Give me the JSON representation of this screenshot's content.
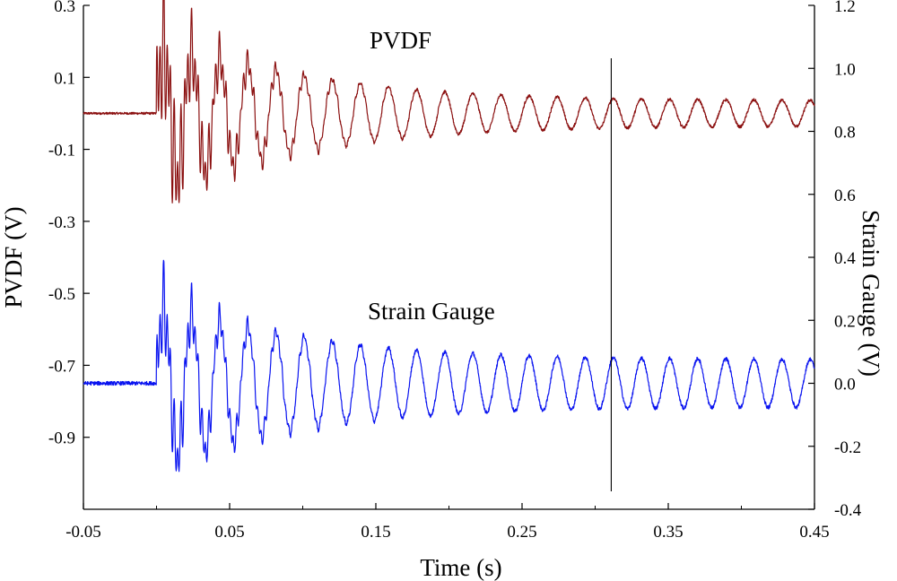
{
  "chart_data": {
    "type": "line",
    "title": "",
    "xlabel": "Time (s)",
    "ylabel_left": "PVDF (V)",
    "ylabel_right": "Strain Gauge (V)",
    "xlim": [
      -0.05,
      0.45
    ],
    "ylim_left": [
      -1.1,
      0.3
    ],
    "ylim_right": [
      -0.4,
      1.2
    ],
    "x_ticks": [
      -0.05,
      0.05,
      0.15,
      0.25,
      0.35,
      0.45
    ],
    "x_tick_labels": [
      "-0.05",
      "0.05",
      "0.15",
      "0.25",
      "0.35",
      "0.45"
    ],
    "y_left_ticks": [
      0.3,
      0.1,
      -0.1,
      -0.3,
      -0.5,
      -0.7,
      -0.9
    ],
    "y_left_tick_labels": [
      "0.3",
      "0.1",
      "-0.1",
      "-0.3",
      "-0.5",
      "-0.7",
      "-0.9"
    ],
    "y_right_ticks": [
      1.2,
      1.0,
      0.8,
      0.6,
      0.4,
      0.2,
      0.0,
      -0.2,
      -0.4
    ],
    "y_right_tick_labels": [
      "1.2",
      "1.0",
      "0.8",
      "0.6",
      "0.4",
      "0.2",
      "0.0",
      "-0.2",
      "-0.4"
    ],
    "grid": false,
    "vertical_marker_x": 0.311,
    "series": [
      {
        "name": "PVDF",
        "axis": "left",
        "color": "#8b1010",
        "baseline": 0.0,
        "impact_time": 0.0,
        "initial_peak": 0.29,
        "initial_trough": -0.3,
        "late_amplitude": 0.035,
        "dominant_frequency_hz": 52,
        "label": "PVDF"
      },
      {
        "name": "Strain Gauge",
        "axis": "right",
        "color": "#0a14f0",
        "baseline": 0.0,
        "impact_time": 0.0,
        "initial_peak": 0.32,
        "initial_trough": -0.34,
        "late_amplitude": 0.075,
        "dominant_frequency_hz": 52,
        "label": "Strain Gauge"
      }
    ]
  }
}
